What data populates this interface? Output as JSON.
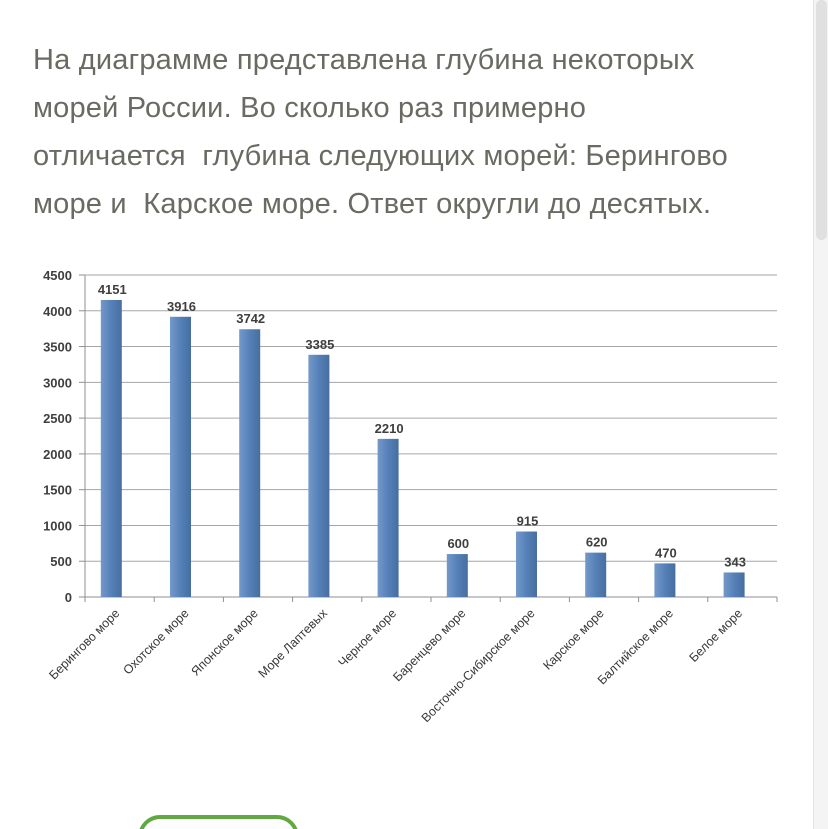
{
  "question": {
    "full_text": "На диаграмме представлена глубина некоторых морей России. Во сколько раз примерно отличается  глубина следующих морей: Берингово море и  Карское море. Ответ округли до десятых.",
    "lines": [
      "На диаграмме представлена глубина некоторых",
      "морей России. Во сколько раз примерно",
      "отличается  глубина следующих морей: Берингово",
      "море и  Карское море. Ответ округли до десятых."
    ],
    "text_color": "#686b62"
  },
  "chart_data": {
    "type": "bar",
    "title": "",
    "xlabel": "",
    "ylabel": "",
    "categories": [
      "Берингово море",
      "Охотское море",
      "Японское море",
      "Море Лаптевых",
      "Черное море",
      "Баренцево море",
      "Восточно-Сибирское море",
      "Карское море",
      "Балтийское море",
      "Белое море"
    ],
    "values": [
      4151,
      3916,
      3742,
      3385,
      2210,
      600,
      915,
      620,
      470,
      343
    ],
    "ylim": [
      0,
      4500
    ],
    "ytick_step": 500,
    "yticks": [
      0,
      500,
      1000,
      1500,
      2000,
      2500,
      3000,
      3500,
      4000,
      4500
    ],
    "grid": true,
    "legend": "none",
    "category_label_rotation_deg": -45,
    "bar_color": "#5580b8",
    "bar_color_light": "#7499ca",
    "bar_color_dark": "#466f9f",
    "gridline_color": "#a6a6a6",
    "axis_color": "#8f8f8f",
    "label_color": "#3f3f3f"
  },
  "answer_button": {
    "label": "",
    "border_color": "#61a843"
  }
}
